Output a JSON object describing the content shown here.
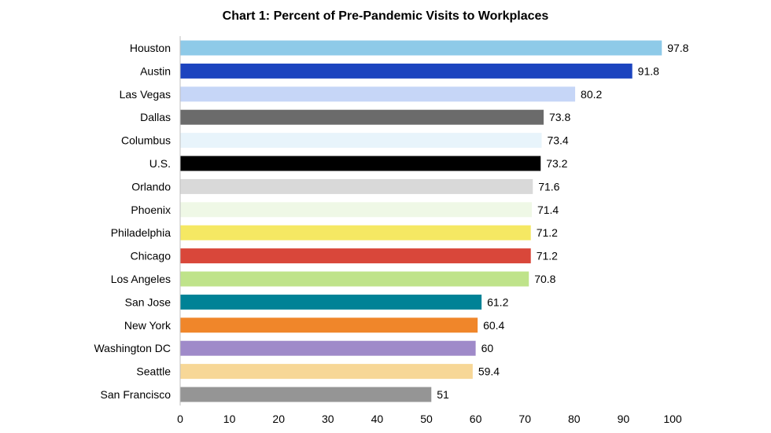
{
  "chart_data": {
    "type": "bar",
    "orientation": "horizontal",
    "title": "Chart 1: Percent of Pre-Pandemic Visits to Workplaces",
    "xlabel": "",
    "ylabel": "",
    "xlim": [
      0,
      100
    ],
    "xticks": [
      "0",
      "10",
      "20",
      "30",
      "40",
      "50",
      "60",
      "70",
      "80",
      "90",
      "100"
    ],
    "grid": false,
    "legend": "none",
    "categories": [
      "Houston",
      "Austin",
      "Las Vegas",
      "Dallas",
      "Columbus",
      "U.S.",
      "Orlando",
      "Phoenix",
      "Philadelphia",
      "Chicago",
      "Los Angeles",
      "San Jose",
      "New York",
      "Washington DC",
      "Seattle",
      "San Francisco"
    ],
    "values": [
      97.8,
      91.8,
      80.2,
      73.8,
      73.4,
      73.2,
      71.6,
      71.4,
      71.2,
      71.2,
      70.8,
      61.2,
      60.4,
      60,
      59.4,
      51
    ],
    "value_labels": [
      "97.8",
      "91.8",
      "80.2",
      "73.8",
      "73.4",
      "73.2",
      "71.6",
      "71.4",
      "71.2",
      "71.2",
      "70.8",
      "61.2",
      "60.4",
      "60",
      "59.4",
      "51"
    ],
    "colors": [
      "#8ecae8",
      "#1c44bf",
      "#c6d6f7",
      "#6b6b6b",
      "#e8f4fb",
      "#000000",
      "#d9d9d9",
      "#eff8e6",
      "#f5e863",
      "#d9473a",
      "#bfe38a",
      "#008296",
      "#f0862a",
      "#9f8ac9",
      "#f7d797",
      "#959595"
    ],
    "axis_color": "#bfbfbf"
  }
}
